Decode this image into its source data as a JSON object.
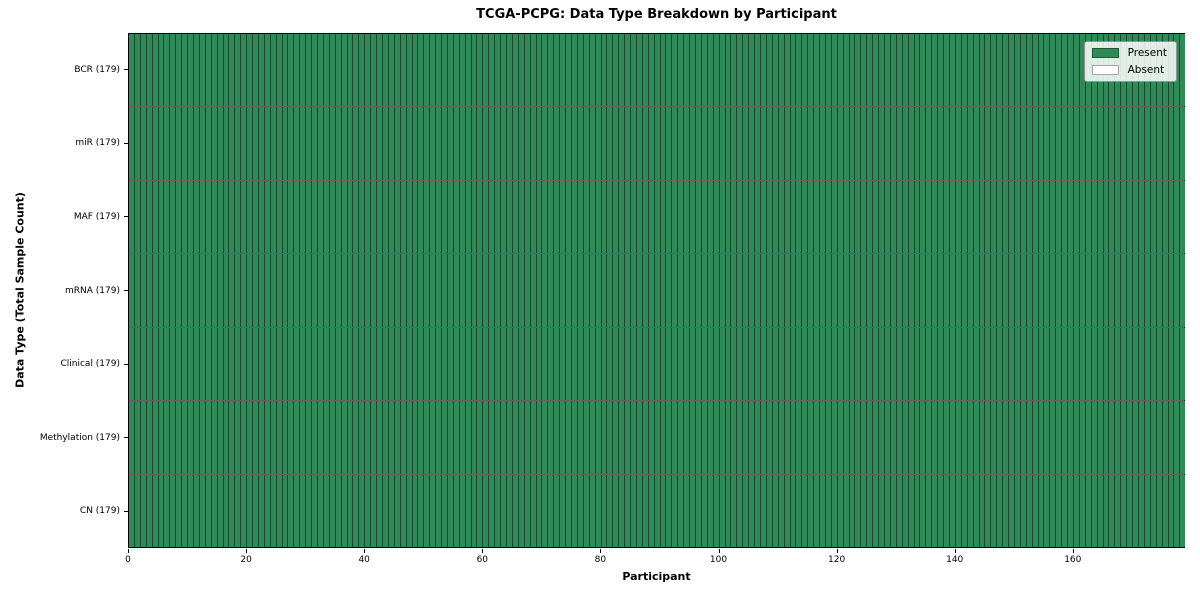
{
  "chart_data": {
    "type": "heatmap",
    "title": "TCGA-PCPG: Data Type Breakdown by Participant",
    "xlabel": "Participant",
    "ylabel": "Data Type (Total Sample Count)",
    "n_participants": 179,
    "x_range": [
      0,
      179
    ],
    "x_ticks": [
      0,
      20,
      40,
      60,
      80,
      100,
      120,
      140,
      160
    ],
    "grid": false,
    "rows": [
      {
        "label": "BCR (179)",
        "data_type": "BCR",
        "total_samples": 179,
        "present_count": 179,
        "absent_count": 0
      },
      {
        "label": "miR (179)",
        "data_type": "miR",
        "total_samples": 179,
        "present_count": 179,
        "absent_count": 0
      },
      {
        "label": "MAF (179)",
        "data_type": "MAF",
        "total_samples": 179,
        "present_count": 179,
        "absent_count": 0
      },
      {
        "label": "mRNA (179)",
        "data_type": "mRNA",
        "total_samples": 179,
        "present_count": 179,
        "absent_count": 0
      },
      {
        "label": "Clinical (179)",
        "data_type": "Clinical",
        "total_samples": 179,
        "present_count": 179,
        "absent_count": 0
      },
      {
        "label": "Methylation (179)",
        "data_type": "Methylation",
        "total_samples": 179,
        "present_count": 179,
        "absent_count": 0
      },
      {
        "label": "CN (179)",
        "data_type": "CN",
        "total_samples": 179,
        "present_count": 179,
        "absent_count": 0
      }
    ],
    "legend": {
      "position": "upper right",
      "entries": [
        {
          "label": "Present",
          "color": "#2f8a57"
        },
        {
          "label": "Absent",
          "color": "#ffffff"
        }
      ]
    },
    "colors": {
      "present": "#2f8a57",
      "absent": "#ffffff"
    }
  }
}
